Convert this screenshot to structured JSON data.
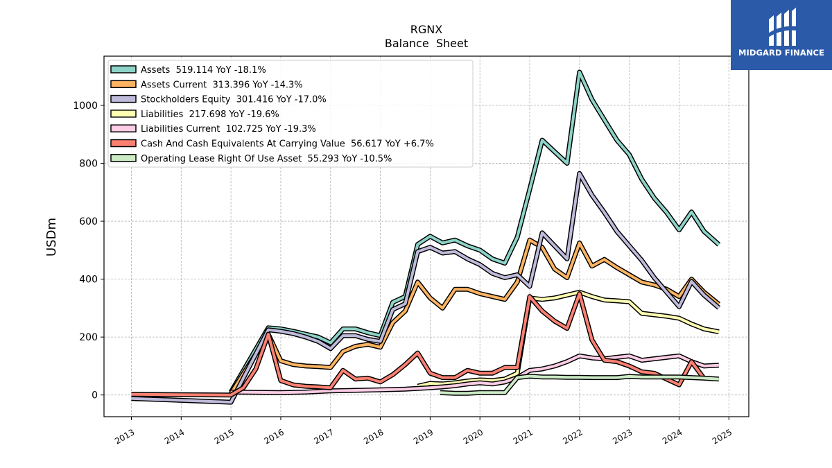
{
  "chart_data": {
    "type": "line",
    "title": "RGNX",
    "subtitle": "Balance  Sheet",
    "ylabel": "USDm",
    "xlabel": "",
    "xlim": [
      2012.45,
      2025.4
    ],
    "ylim": [
      -75,
      1170
    ],
    "x_ticks": [
      2013,
      2014,
      2015,
      2016,
      2017,
      2018,
      2019,
      2020,
      2021,
      2022,
      2023,
      2024,
      2025
    ],
    "y_ticks": [
      0,
      200,
      400,
      600,
      800,
      1000
    ],
    "grid": true,
    "legend_position": "top-left",
    "series": [
      {
        "name": "Assets",
        "legend": "Assets  519.114 YoY -18.1%",
        "color": "#8dd3c7",
        "x": [
          2015.0,
          2015.75,
          2016.0,
          2016.25,
          2016.5,
          2016.75,
          2017.0,
          2017.25,
          2017.5,
          2017.75,
          2018.0,
          2018.25,
          2018.5,
          2018.75,
          2019.0,
          2019.25,
          2019.5,
          2019.75,
          2020.0,
          2020.25,
          2020.5,
          2020.75,
          2021.0,
          2021.25,
          2021.5,
          2021.75,
          2022.0,
          2022.25,
          2022.5,
          2022.75,
          2023.0,
          2023.25,
          2023.5,
          2023.75,
          2024.0,
          2024.25,
          2024.5,
          2024.8
        ],
        "y": [
          10,
          232,
          228,
          220,
          210,
          200,
          180,
          228,
          228,
          215,
          205,
          320,
          340,
          520,
          548,
          525,
          535,
          515,
          500,
          470,
          455,
          545,
          710,
          880,
          840,
          800,
          1115,
          1020,
          950,
          880,
          830,
          745,
          680,
          630,
          570,
          632,
          565,
          519
        ]
      },
      {
        "name": "Assets Current",
        "legend": "Assets Current  313.396 YoY -14.3%",
        "color": "#fdb462",
        "x": [
          2015.0,
          2015.75,
          2016.0,
          2016.25,
          2016.5,
          2016.75,
          2017.0,
          2017.25,
          2017.5,
          2017.75,
          2018.0,
          2018.25,
          2018.5,
          2018.75,
          2019.0,
          2019.25,
          2019.5,
          2019.75,
          2020.0,
          2020.25,
          2020.5,
          2020.75,
          2021.0,
          2021.25,
          2021.5,
          2021.75,
          2022.0,
          2022.25,
          2022.5,
          2022.75,
          2023.0,
          2023.25,
          2023.5,
          2023.75,
          2024.0,
          2024.25,
          2024.5,
          2024.8
        ],
        "y": [
          5,
          210,
          118,
          105,
          100,
          98,
          95,
          150,
          168,
          175,
          165,
          250,
          290,
          390,
          335,
          300,
          365,
          365,
          350,
          340,
          330,
          390,
          535,
          510,
          435,
          405,
          525,
          445,
          468,
          440,
          415,
          390,
          380,
          365,
          340,
          400,
          355,
          313
        ]
      },
      {
        "name": "Stockholders Equity",
        "legend": "Stockholders Equity  301.416 YoY -17.0%",
        "color": "#bebada",
        "x": [
          2013.0,
          2015.0,
          2015.75,
          2016.0,
          2016.25,
          2016.5,
          2016.75,
          2017.0,
          2017.25,
          2017.5,
          2017.75,
          2018.0,
          2018.25,
          2018.5,
          2018.75,
          2019.0,
          2019.25,
          2019.5,
          2019.75,
          2020.0,
          2020.25,
          2020.5,
          2020.75,
          2021.0,
          2021.25,
          2021.5,
          2021.75,
          2022.0,
          2022.25,
          2022.5,
          2022.75,
          2023.0,
          2023.25,
          2023.5,
          2023.75,
          2024.0,
          2024.25,
          2024.5,
          2024.8
        ],
        "y": [
          -12,
          -25,
          225,
          220,
          212,
          200,
          185,
          160,
          205,
          205,
          192,
          185,
          295,
          315,
          495,
          510,
          490,
          495,
          470,
          450,
          420,
          405,
          415,
          375,
          560,
          515,
          470,
          765,
          690,
          630,
          565,
          515,
          465,
          405,
          355,
          305,
          392,
          345,
          301
        ]
      },
      {
        "name": "Liabilities",
        "legend": "Liabilities  217.698 YoY -19.6%",
        "color": "#ffffb3",
        "x": [
          2018.75,
          2019.0,
          2019.25,
          2019.5,
          2019.75,
          2020.0,
          2020.25,
          2020.5,
          2020.75,
          2021.0,
          2021.25,
          2021.5,
          2021.75,
          2022.0,
          2022.25,
          2022.5,
          2022.75,
          2023.0,
          2023.25,
          2023.5,
          2023.75,
          2024.0,
          2024.25,
          2024.5,
          2024.8
        ],
        "y": [
          30,
          40,
          38,
          42,
          48,
          52,
          50,
          55,
          75,
          335,
          330,
          335,
          345,
          355,
          340,
          328,
          325,
          322,
          282,
          277,
          272,
          265,
          245,
          228,
          218
        ]
      },
      {
        "name": "Liabilities Current",
        "legend": "Liabilities Current  102.725 YoY -19.3%",
        "color": "#fccde5",
        "x": [
          2015.0,
          2016.0,
          2016.5,
          2017.0,
          2017.5,
          2018.0,
          2018.5,
          2019.0,
          2019.25,
          2019.5,
          2019.75,
          2020.0,
          2020.25,
          2020.5,
          2020.75,
          2021.0,
          2021.25,
          2021.5,
          2021.75,
          2022.0,
          2022.25,
          2022.5,
          2022.75,
          2023.0,
          2023.25,
          2023.5,
          2023.75,
          2024.0,
          2024.25,
          2024.5,
          2024.8
        ],
        "y": [
          10,
          8,
          10,
          14,
          16,
          18,
          20,
          25,
          28,
          32,
          38,
          42,
          38,
          45,
          60,
          85,
          90,
          100,
          115,
          135,
          128,
          125,
          130,
          135,
          120,
          125,
          130,
          135,
          115,
          100,
          103
        ]
      },
      {
        "name": "Cash And Cash Equivalents At Carrying Value",
        "legend": "Cash And Cash Equivalents At Carrying Value  56.617 YoY +6.7%",
        "color": "#fb8072",
        "x": [
          2013.0,
          2015.0,
          2015.25,
          2015.5,
          2015.75,
          2016.0,
          2016.25,
          2016.5,
          2016.75,
          2017.0,
          2017.25,
          2017.5,
          2017.75,
          2018.0,
          2018.25,
          2018.5,
          2018.75,
          2019.0,
          2019.25,
          2019.5,
          2019.75,
          2020.0,
          2020.25,
          2020.5,
          2020.75,
          2021.0,
          2021.25,
          2021.5,
          2021.75,
          2022.0,
          2022.25,
          2022.5,
          2022.75,
          2023.0,
          2023.25,
          2023.5,
          2023.75,
          2024.0,
          2024.25,
          2024.5
        ],
        "y": [
          2,
          0,
          25,
          90,
          210,
          50,
          35,
          30,
          28,
          25,
          85,
          55,
          58,
          45,
          70,
          105,
          145,
          75,
          60,
          60,
          85,
          75,
          75,
          95,
          95,
          340,
          290,
          255,
          230,
          350,
          190,
          120,
          115,
          100,
          80,
          75,
          55,
          35,
          115,
          57
        ]
      },
      {
        "name": "Operating Lease Right Of Use Asset",
        "legend": "Operating Lease Right Of Use Asset  55.293 YoY -10.5%",
        "color": "#ccebc5",
        "x": [
          2019.2,
          2019.5,
          2019.75,
          2020.0,
          2020.25,
          2020.5,
          2020.75,
          2021.0,
          2021.25,
          2021.5,
          2021.75,
          2022.0,
          2022.25,
          2022.5,
          2022.75,
          2023.0,
          2023.25,
          2023.5,
          2023.75,
          2024.0,
          2024.25,
          2024.5,
          2024.8
        ],
        "y": [
          8,
          6,
          6,
          8,
          8,
          8,
          60,
          65,
          62,
          62,
          61,
          61,
          60,
          60,
          60,
          64,
          62,
          62,
          62,
          62,
          60,
          58,
          55
        ]
      }
    ]
  },
  "logo": {
    "text": "MIDGARD FINANCE",
    "color": "#2b5aa8"
  }
}
